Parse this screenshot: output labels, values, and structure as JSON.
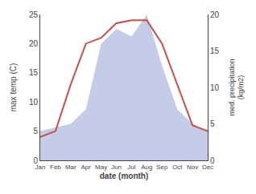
{
  "chart_data": {
    "type": "line",
    "categories": [
      "Jan",
      "Feb",
      "Mar",
      "Apr",
      "May",
      "Jun",
      "Jul",
      "Aug",
      "Sep",
      "Oct",
      "Nov",
      "Dec"
    ],
    "xlabel": "date (month)",
    "ylabel": "max temp (C)",
    "y2label": "med. precipitation\n(kg/m2)",
    "series": [
      {
        "type": "area",
        "axis": "y2",
        "color": "#c5cce8",
        "values": [
          4.0,
          4.5,
          5.0,
          7.0,
          16.0,
          18.0,
          17.0,
          20.0,
          13.0,
          7.0,
          5.0,
          4.0
        ]
      },
      {
        "type": "line",
        "color": "#c0504d",
        "values": [
          4.0,
          5.0,
          13.0,
          20.0,
          21.0,
          23.5,
          24.0,
          24.0,
          20.0,
          13.0,
          6.0,
          5.0
        ]
      }
    ],
    "ylim": [
      0,
      25
    ],
    "yticks": [
      0,
      5,
      10,
      15,
      20,
      25
    ],
    "y2lim": [
      0,
      20
    ],
    "y2ticks": [
      0,
      5,
      10,
      15,
      20
    ],
    "grid": false
  }
}
